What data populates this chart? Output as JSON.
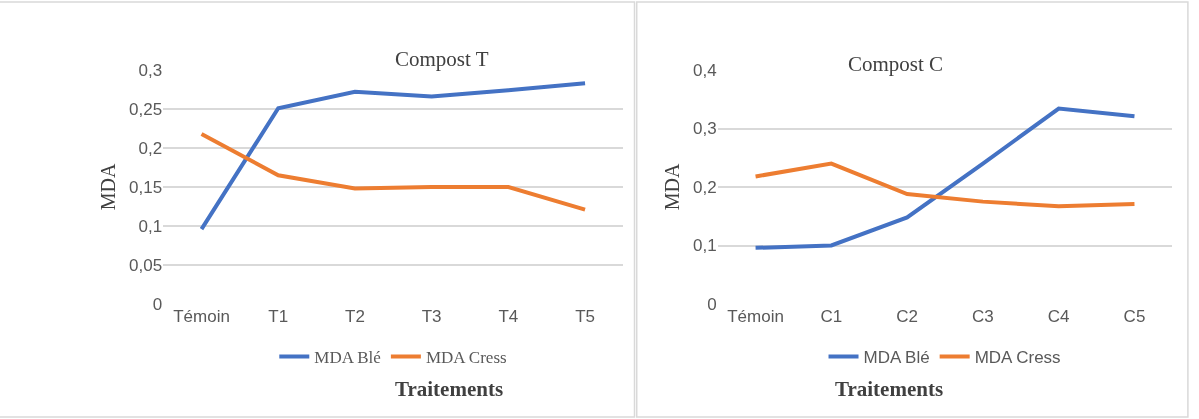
{
  "chart_data": [
    {
      "type": "line",
      "title": "Compost T",
      "xlabel": "Traitements",
      "ylabel": "MDA",
      "categories": [
        "Témoin",
        "T1",
        "T2",
        "T3",
        "T4",
        "T5"
      ],
      "series": [
        {
          "name": "MDA Blé",
          "color": "#4472c4",
          "values": [
            0.096,
            0.251,
            0.272,
            0.266,
            0.274,
            0.283
          ]
        },
        {
          "name": "MDA Cress",
          "color": "#ed7d31",
          "values": [
            0.218,
            0.165,
            0.148,
            0.15,
            0.15,
            0.121
          ]
        }
      ],
      "ylim": [
        0,
        0.3
      ],
      "yticks": [
        {
          "value": 0,
          "label": "0"
        },
        {
          "value": 0.05,
          "label": "0,05"
        },
        {
          "value": 0.1,
          "label": "0,1"
        },
        {
          "value": 0.15,
          "label": "0,15"
        },
        {
          "value": 0.2,
          "label": "0,2"
        },
        {
          "value": 0.25,
          "label": "0,25"
        },
        {
          "value": 0.3,
          "label": "0,3"
        }
      ],
      "grid": "y",
      "legend": "bottom",
      "marker": "none",
      "line_style": "solid"
    },
    {
      "type": "line",
      "title": "Compost C",
      "xlabel": "Traitements",
      "ylabel": "MDA",
      "categories": [
        "Témoin",
        "C1",
        "C2",
        "C3",
        "C4",
        "C5"
      ],
      "series": [
        {
          "name": "MDA Blé",
          "color": "#4472c4",
          "values": [
            0.096,
            0.1,
            0.148,
            0.24,
            0.334,
            0.321
          ]
        },
        {
          "name": "MDA Cress",
          "color": "#ed7d31",
          "values": [
            0.218,
            0.24,
            0.188,
            0.175,
            0.167,
            0.171
          ]
        }
      ],
      "ylim": [
        0,
        0.4
      ],
      "yticks": [
        {
          "value": 0,
          "label": "0"
        },
        {
          "value": 0.1,
          "label": "0,1"
        },
        {
          "value": 0.2,
          "label": "0,2"
        },
        {
          "value": 0.3,
          "label": "0,3"
        },
        {
          "value": 0.4,
          "label": "0,4"
        }
      ],
      "grid": "y",
      "legend": "bottom",
      "marker": "none",
      "line_style": "solid"
    }
  ]
}
